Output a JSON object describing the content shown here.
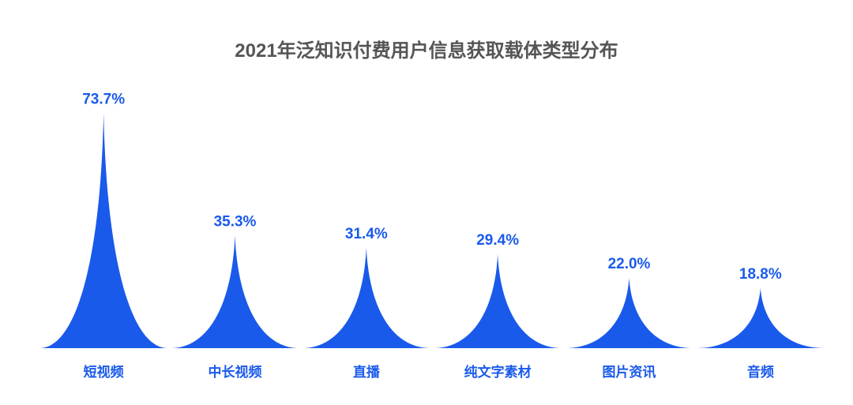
{
  "title": "2021年泛知识付费用户信息获取载体类型分布",
  "colors": {
    "bar": "#1a5aeb",
    "label": "#1a5aeb",
    "title": "#555555"
  },
  "chart_data": {
    "type": "bar",
    "style": "pictorial spike (concave triangle) bars",
    "title": "2021年泛知识付费用户信息获取载体类型分布",
    "xlabel": "",
    "ylabel": "",
    "unit": "%",
    "grid": false,
    "legend": "none",
    "categories": [
      "短视频",
      "中长视频",
      "直播",
      "纯文字素材",
      "图片资讯",
      "音频"
    ],
    "values": [
      73.7,
      35.3,
      31.4,
      29.4,
      22.0,
      18.8
    ],
    "labels": [
      "73.7%",
      "35.3%",
      "31.4%",
      "29.4%",
      "22.0%",
      "18.8%"
    ]
  }
}
